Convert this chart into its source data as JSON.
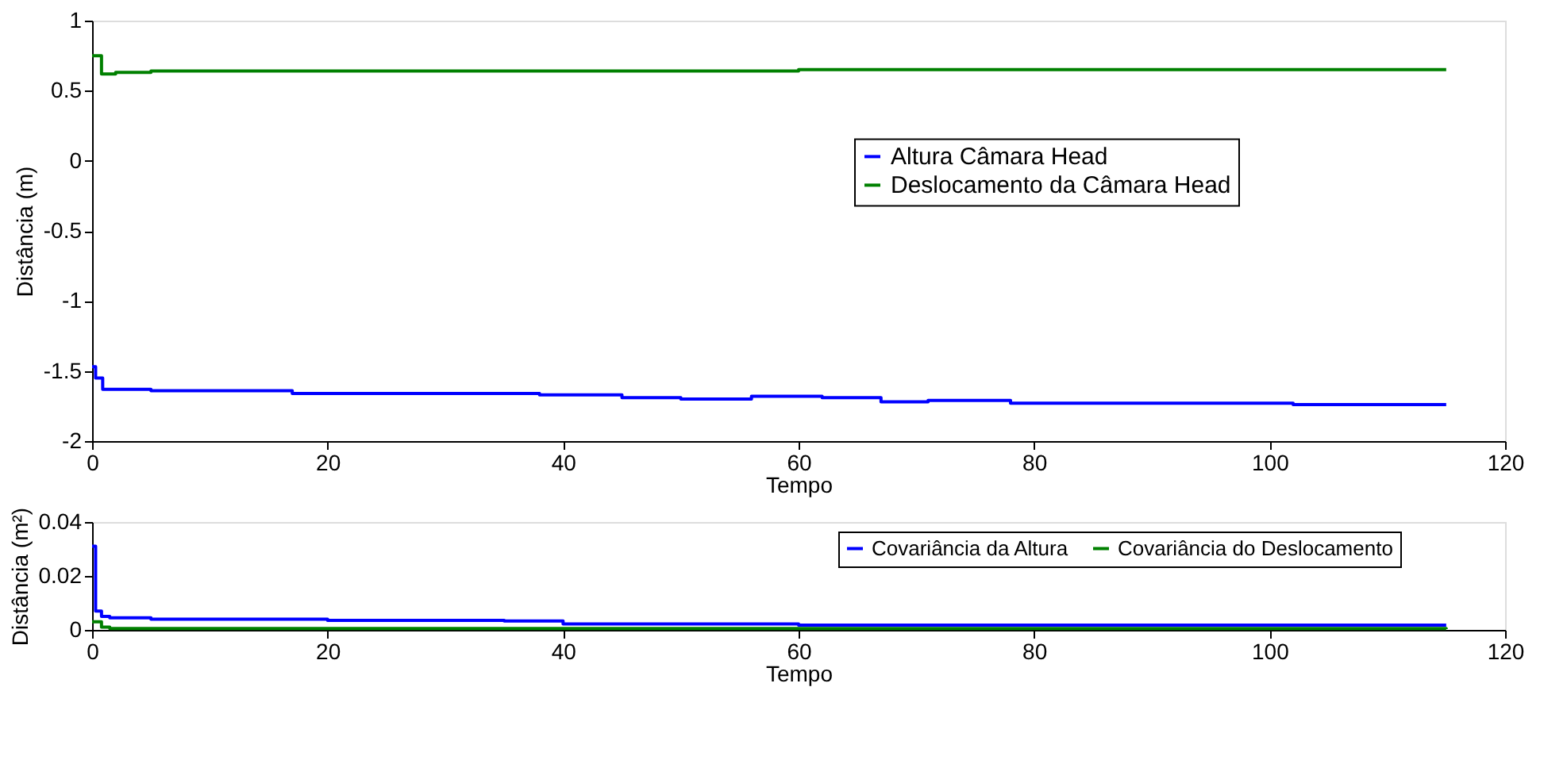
{
  "chart_data": [
    {
      "type": "step",
      "xlabel": "Tempo",
      "ylabel": "Distância (m)",
      "xlim": [
        0,
        120
      ],
      "xticks": [
        0,
        20,
        40,
        60,
        80,
        100,
        120
      ],
      "ylim": [
        -2,
        1
      ],
      "yticks": [
        -2,
        -1.5,
        -1,
        -0.5,
        0,
        0.5,
        1
      ],
      "grid": false,
      "legend": "right",
      "series": [
        {
          "name": "Altura Câmara Head",
          "color": "#0000ff",
          "x": [
            0,
            0.3,
            0.9,
            5,
            17,
            35,
            38,
            45,
            50,
            53,
            56,
            62,
            67,
            71,
            78,
            102,
            115
          ],
          "values": [
            -1.47,
            -1.55,
            -1.63,
            -1.64,
            -1.66,
            -1.66,
            -1.67,
            -1.69,
            -1.7,
            -1.7,
            -1.68,
            -1.69,
            -1.72,
            -1.71,
            -1.73,
            -1.74,
            -1.74
          ]
        },
        {
          "name": "Deslocamento da Câmara Head",
          "color": "#008000",
          "x": [
            0,
            0.8,
            1.5,
            2,
            5,
            39,
            60,
            115
          ],
          "values": [
            0.75,
            0.62,
            0.62,
            0.63,
            0.64,
            0.64,
            0.65,
            0.65
          ]
        }
      ]
    },
    {
      "type": "step",
      "xlabel": "Tempo",
      "ylabel": "Distância (m²)",
      "xlim": [
        0,
        120
      ],
      "xticks": [
        0,
        20,
        40,
        60,
        80,
        100,
        120
      ],
      "ylim": [
        0,
        0.04
      ],
      "yticks": [
        0,
        0.02,
        0.04
      ],
      "grid": false,
      "legend": "top right",
      "series": [
        {
          "name": "Covariância da Altura",
          "color": "#0000ff",
          "x": [
            0,
            0.3,
            0.8,
            1.5,
            5,
            20,
            35,
            40,
            60,
            115
          ],
          "values": [
            0.031,
            0.007,
            0.005,
            0.0045,
            0.004,
            0.0035,
            0.0033,
            0.0022,
            0.0018,
            0.0018
          ]
        },
        {
          "name": "Covariância do Deslocamento",
          "color": "#008000",
          "x": [
            0,
            0.8,
            1.5,
            115
          ],
          "values": [
            0.003,
            0.001,
            0.0005,
            0.0003
          ]
        }
      ]
    }
  ]
}
